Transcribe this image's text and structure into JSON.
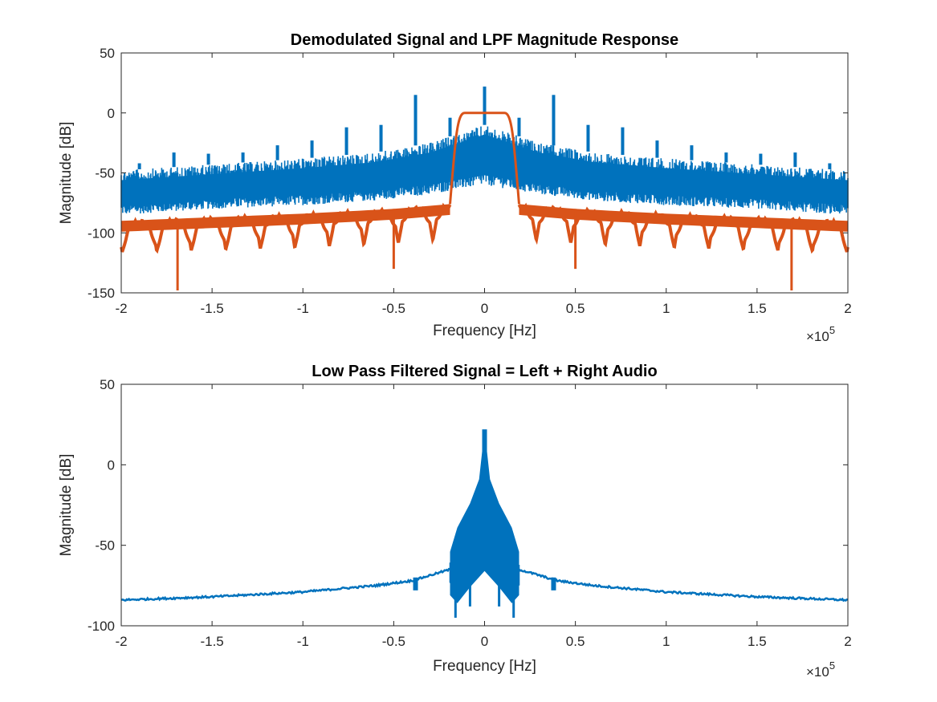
{
  "chart_data": [
    {
      "type": "line",
      "title": "Demodulated Signal and LPF Magnitude Response",
      "xlabel": "Frequency [Hz]",
      "ylabel": "Magnitude [dB]",
      "xlim": [
        -200000,
        200000
      ],
      "ylim": [
        -150,
        50
      ],
      "x_exponent_label": "×10",
      "x_exponent_power": "5",
      "xticks": [
        -2,
        -1.5,
        -1,
        -0.5,
        0,
        0.5,
        1,
        1.5,
        2
      ],
      "xtick_labels": [
        "-2",
        "-1.5",
        "-1",
        "-0.5",
        "0",
        "0.5",
        "1",
        "1.5",
        "2"
      ],
      "yticks": [
        -150,
        -100,
        -50,
        0,
        50
      ],
      "ytick_labels": [
        "-150",
        "-100",
        "-50",
        "0",
        "50"
      ],
      "grid": false,
      "series": [
        {
          "name": "Demodulated Signal",
          "color": "#0072BD",
          "style": "noise-band",
          "band_upper": [
            [
              -200000,
              -48
            ],
            [
              -150000,
              -43
            ],
            [
              -100000,
              -38
            ],
            [
              -60000,
              -33
            ],
            [
              -30000,
              -25
            ],
            [
              0,
              -10
            ],
            [
              30000,
              -25
            ],
            [
              60000,
              -33
            ],
            [
              100000,
              -38
            ],
            [
              150000,
              -43
            ],
            [
              200000,
              -48
            ]
          ],
          "band_lower": [
            [
              -200000,
              -85
            ],
            [
              -150000,
              -80
            ],
            [
              -100000,
              -77
            ],
            [
              -60000,
              -73
            ],
            [
              -30000,
              -68
            ],
            [
              0,
              -60
            ],
            [
              30000,
              -68
            ],
            [
              60000,
              -73
            ],
            [
              100000,
              -77
            ],
            [
              150000,
              -80
            ],
            [
              200000,
              -85
            ]
          ],
          "peaks": [
            [
              -190000,
              -42
            ],
            [
              -171000,
              -33
            ],
            [
              -152000,
              -34
            ],
            [
              -133000,
              -33
            ],
            [
              -114000,
              -27
            ],
            [
              -95000,
              -23
            ],
            [
              -76000,
              -12
            ],
            [
              -57000,
              -10
            ],
            [
              -38000,
              15
            ],
            [
              -19000,
              -4
            ],
            [
              0,
              22
            ],
            [
              19000,
              -4
            ],
            [
              38000,
              15
            ],
            [
              57000,
              -10
            ],
            [
              76000,
              -12
            ],
            [
              95000,
              -23
            ],
            [
              114000,
              -27
            ],
            [
              133000,
              -33
            ],
            [
              152000,
              -34
            ],
            [
              171000,
              -33
            ],
            [
              190000,
              -42
            ]
          ]
        },
        {
          "name": "LPF Magnitude Response",
          "color": "#D95319",
          "style": "filter-response",
          "passband_edge_hz": 15000,
          "transition_hz": 19000,
          "passband_level": 0,
          "stopband_upper": [
            [
              -200000,
              -90
            ],
            [
              -150000,
              -87
            ],
            [
              -100000,
              -84
            ],
            [
              -50000,
              -80
            ],
            [
              -19000,
              -76
            ],
            [
              19000,
              -76
            ],
            [
              50000,
              -80
            ],
            [
              100000,
              -84
            ],
            [
              150000,
              -87
            ],
            [
              200000,
              -90
            ]
          ],
          "lobe_spacing_hz": 19000,
          "lobe_depth": 25,
          "deep_nulls": [
            [
              -169000,
              -148
            ],
            [
              -50000,
              -130
            ],
            [
              50000,
              -130
            ],
            [
              169000,
              -148
            ]
          ]
        }
      ]
    },
    {
      "type": "line",
      "title": "Low Pass Filtered Signal = Left + Right Audio",
      "xlabel": "Frequency [Hz]",
      "ylabel": "Magnitude [dB]",
      "xlim": [
        -200000,
        200000
      ],
      "ylim": [
        -100,
        50
      ],
      "x_exponent_label": "×10",
      "x_exponent_power": "5",
      "xticks": [
        -2,
        -1.5,
        -1,
        -0.5,
        0,
        0.5,
        1,
        1.5,
        2
      ],
      "xtick_labels": [
        "-2",
        "-1.5",
        "-1",
        "-0.5",
        "0",
        "0.5",
        "1",
        "1.5",
        "2"
      ],
      "yticks": [
        -100,
        -50,
        0,
        50
      ],
      "ytick_labels": [
        "-100",
        "-50",
        "0",
        "50"
      ],
      "grid": false,
      "series": [
        {
          "name": "Low Pass Filtered Signal",
          "color": "#0072BD",
          "style": "filtered-spectrum",
          "baseline": [
            [
              -200000,
              -84
            ],
            [
              -150000,
              -82
            ],
            [
              -100000,
              -79
            ],
            [
              -60000,
              -75
            ],
            [
              -40000,
              -72
            ],
            [
              -19000,
              -65
            ],
            [
              19000,
              -65
            ],
            [
              40000,
              -72
            ],
            [
              60000,
              -75
            ],
            [
              100000,
              -79
            ],
            [
              150000,
              -82
            ],
            [
              200000,
              -84
            ]
          ],
          "passband_upper": [
            [
              -19000,
              -60
            ],
            [
              -15000,
              -45
            ],
            [
              -8000,
              -30
            ],
            [
              -3000,
              -15
            ],
            [
              0,
              22
            ],
            [
              3000,
              -15
            ],
            [
              8000,
              -30
            ],
            [
              15000,
              -45
            ],
            [
              19000,
              -60
            ]
          ],
          "passband_lower": [
            [
              -19000,
              -75
            ],
            [
              -15000,
              -80
            ],
            [
              -8000,
              -70
            ],
            [
              0,
              -60
            ],
            [
              8000,
              -70
            ],
            [
              15000,
              -80
            ],
            [
              19000,
              -75
            ]
          ],
          "deep_nulls": [
            [
              -16000,
              -95
            ],
            [
              -8000,
              -88
            ],
            [
              8000,
              -88
            ],
            [
              16000,
              -95
            ]
          ]
        }
      ]
    }
  ]
}
